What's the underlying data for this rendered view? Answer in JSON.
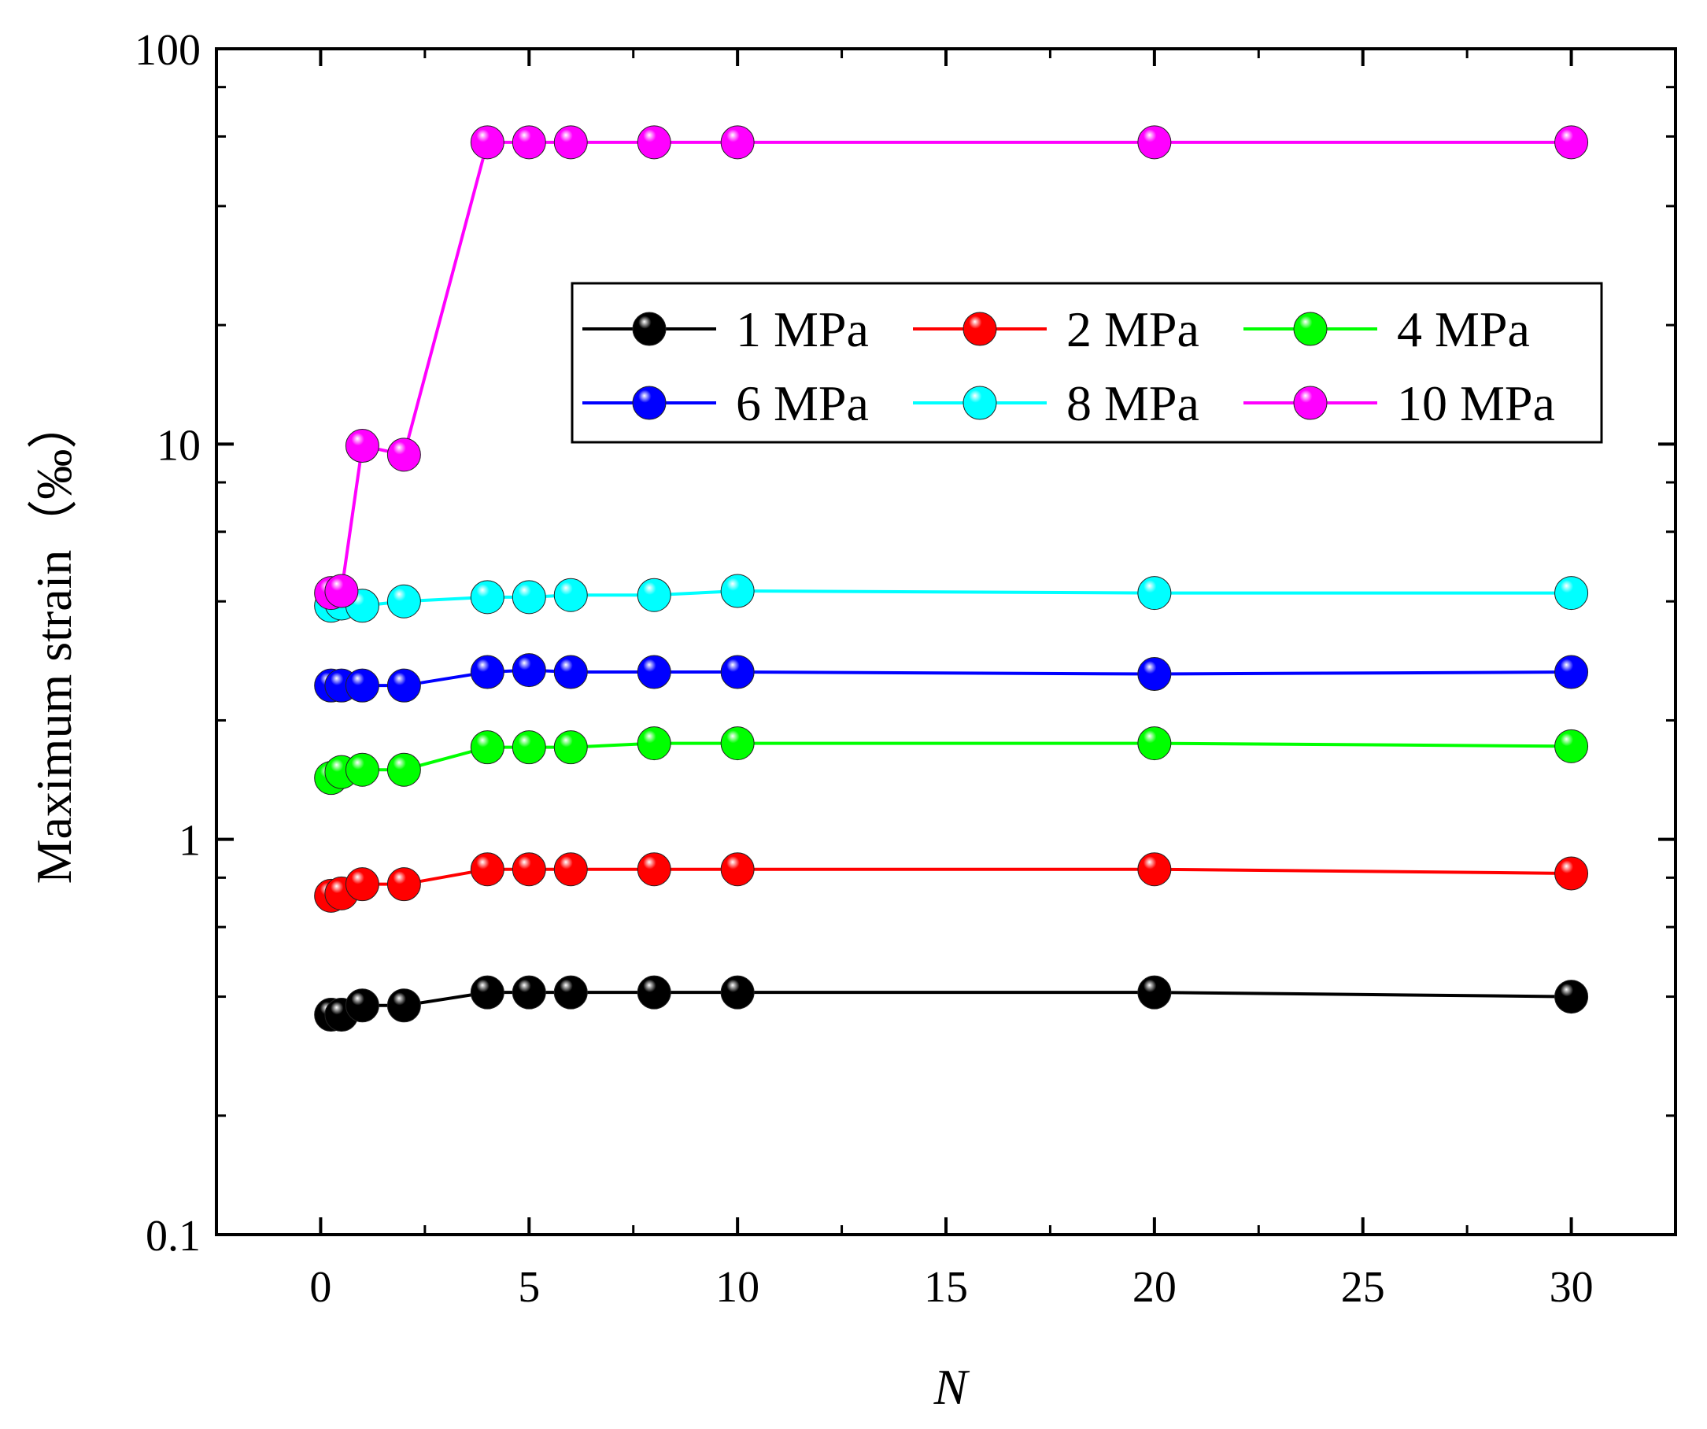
{
  "chart_data": {
    "type": "line",
    "xlabel": "N",
    "ylabel": "Maximum strain（‰）",
    "yscale": "log",
    "xlim": [
      -2.5,
      32.5
    ],
    "ylim": [
      0.1,
      100
    ],
    "xticks": [
      0,
      5,
      10,
      15,
      20,
      25,
      30
    ],
    "xtick_labels": [
      "0",
      "5",
      "10",
      "15",
      "20",
      "25",
      "30"
    ],
    "yticks": [
      0.1,
      1,
      10,
      100
    ],
    "ytick_labels": [
      "0.1",
      "1",
      "10",
      "100"
    ],
    "legend_position": "upper-right",
    "x": [
      0.25,
      0.5,
      1,
      2,
      4,
      5,
      6,
      8,
      10,
      20,
      30
    ],
    "series": [
      {
        "name": "1 MPa",
        "color": "#000000",
        "values": [
          0.36,
          0.36,
          0.38,
          0.38,
          0.41,
          0.41,
          0.41,
          0.41,
          0.41,
          0.41,
          0.4
        ]
      },
      {
        "name": "2 MPa",
        "color": "#ff0000",
        "values": [
          0.72,
          0.73,
          0.77,
          0.77,
          0.84,
          0.84,
          0.84,
          0.84,
          0.84,
          0.84,
          0.82
        ]
      },
      {
        "name": "4 MPa",
        "color": "#00ff00",
        "values": [
          1.43,
          1.48,
          1.5,
          1.5,
          1.71,
          1.71,
          1.71,
          1.75,
          1.75,
          1.75,
          1.72
        ]
      },
      {
        "name": "6 MPa",
        "color": "#0000ff",
        "values": [
          2.45,
          2.45,
          2.45,
          2.45,
          2.65,
          2.68,
          2.65,
          2.65,
          2.65,
          2.62,
          2.65
        ]
      },
      {
        "name": "8 MPa",
        "color": "#00ffff",
        "values": [
          3.9,
          3.95,
          3.9,
          4.0,
          4.1,
          4.1,
          4.15,
          4.15,
          4.25,
          4.2,
          4.2
        ]
      },
      {
        "name": "10 MPa",
        "color": "#ff00ff",
        "values": [
          4.2,
          4.25,
          9.9,
          9.4,
          58.0,
          58.0,
          58.0,
          58.0,
          58.0,
          58.0,
          58.0
        ]
      }
    ]
  }
}
